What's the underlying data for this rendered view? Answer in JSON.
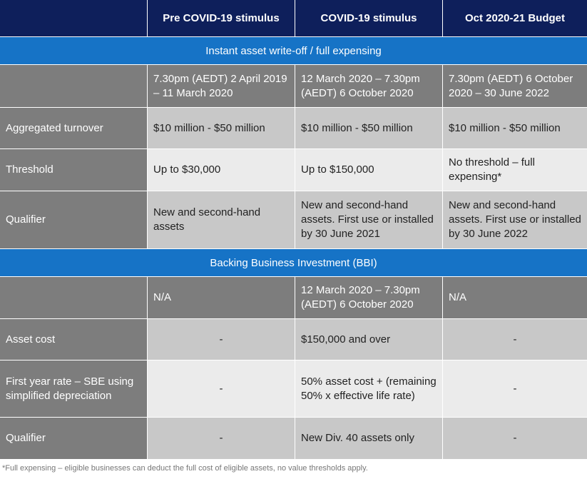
{
  "header": {
    "col1": "Pre COVID-19 stimulus",
    "col2": "COVID-19 stimulus",
    "col3": "Oct 2020-21 Budget"
  },
  "section1": {
    "title": "Instant asset write-off / full expensing",
    "dates": [
      "",
      "7.30pm (AEDT) 2 April 2019 – 11 March 2020",
      "12 March 2020 – 7.30pm (AEDT) 6 October 2020",
      "7.30pm (AEDT) 6 October 2020 – 30 June 2022"
    ],
    "rows": [
      [
        "Aggregated turnover",
        "$10 million - $50 million",
        "$10 million - $50 million",
        "$10 million - $50 million"
      ],
      [
        "Threshold",
        "Up to $30,000",
        "Up to $150,000",
        "No threshold – full expensing*"
      ],
      [
        "Qualifier",
        "New and second-hand assets",
        "New and second-hand assets. First use or installed by 30 June 2021",
        "New and second-hand assets. First use or installed by 30 June 2022"
      ]
    ]
  },
  "section2": {
    "title": "Backing Business Investment (BBI)",
    "dates": [
      "",
      "N/A",
      "12 March 2020 – 7.30pm (AEDT) 6 October 2020",
      "N/A"
    ],
    "rows": [
      [
        "Asset cost",
        "-",
        "$150,000 and over",
        "-"
      ],
      [
        "First year rate – SBE using simplified depreciation",
        "-",
        "50% asset cost + (remaining 50% x effective life rate)",
        "-"
      ],
      [
        "Qualifier",
        "-",
        "New Div. 40 assets only",
        "-"
      ]
    ]
  },
  "footnote": "*Full expensing – eligible businesses can deduct the full cost of eligible assets, no value thresholds apply."
}
